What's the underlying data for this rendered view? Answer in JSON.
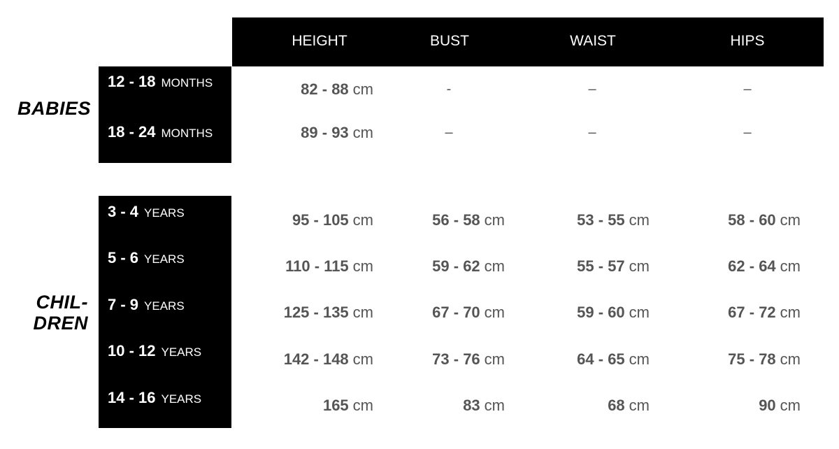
{
  "header": {
    "columns": [
      "HEIGHT",
      "BUST",
      "WAIST",
      "HIPS"
    ]
  },
  "groups": [
    {
      "label": "BABIES",
      "rows": [
        {
          "age": "12 - 18",
          "unit": "MONTHS",
          "values": [
            {
              "n": "82 - 88",
              "u": "cm"
            },
            {
              "d": "-"
            },
            {
              "d": "–"
            },
            {
              "d": "–"
            }
          ]
        },
        {
          "age": "18 - 24",
          "unit": "MONTHS",
          "values": [
            {
              "n": "89 - 93",
              "u": "cm"
            },
            {
              "d": "–"
            },
            {
              "d": "–"
            },
            {
              "d": "–"
            }
          ]
        }
      ]
    },
    {
      "label": "CHIL-\nDREN",
      "label_lines": [
        "CHIL-",
        "DREN"
      ],
      "rows": [
        {
          "age": "3 - 4",
          "unit": "YEARS",
          "values": [
            {
              "n": "95 - 105",
              "u": "cm"
            },
            {
              "n": "56 - 58",
              "u": "cm"
            },
            {
              "n": "53 - 55",
              "u": "cm"
            },
            {
              "n": "58 - 60",
              "u": "cm"
            }
          ]
        },
        {
          "age": "5 - 6",
          "unit": "YEARS",
          "values": [
            {
              "n": "110 - 115",
              "u": "cm"
            },
            {
              "n": "59 - 62",
              "u": "cm"
            },
            {
              "n": "55 - 57",
              "u": "cm"
            },
            {
              "n": "62 - 64",
              "u": "cm"
            }
          ]
        },
        {
          "age": "7 - 9",
          "unit": "YEARS",
          "values": [
            {
              "n": "125 - 135",
              "u": "cm"
            },
            {
              "n": "67 - 70",
              "u": "cm"
            },
            {
              "n": "59 - 60",
              "u": "cm"
            },
            {
              "n": "67 - 72",
              "u": "cm"
            }
          ]
        },
        {
          "age": "10 - 12",
          "unit": "YEARS",
          "values": [
            {
              "n": "142 - 148",
              "u": "cm"
            },
            {
              "n": "73 - 76",
              "u": "cm"
            },
            {
              "n": "64 - 65",
              "u": "cm"
            },
            {
              "n": "75 - 78",
              "u": "cm"
            }
          ]
        },
        {
          "age": "14 - 16",
          "unit": "YEARS",
          "values": [
            {
              "n": "165",
              "u": "cm"
            },
            {
              "n": "83",
              "u": "cm"
            },
            {
              "n": "68",
              "u": "cm"
            },
            {
              "n": "90",
              "u": "cm"
            }
          ]
        }
      ]
    }
  ]
}
